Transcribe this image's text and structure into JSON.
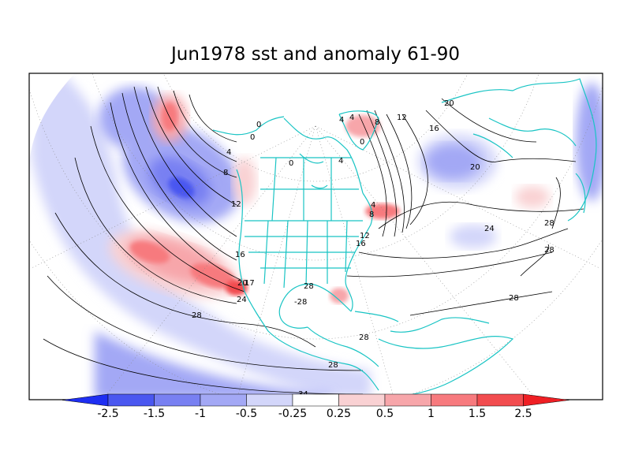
{
  "title": "Jun1978 sst and anomaly 61-90",
  "colorbar": {
    "ticks": [
      "-2.5",
      "-1.5",
      "-1",
      "-0.5",
      "-0.25",
      "0.25",
      "0.5",
      "1",
      "1.5",
      "2.5"
    ],
    "colors": [
      "#1e2ef2",
      "#4a57f0",
      "#7880f2",
      "#a3a8f5",
      "#d3d6fa",
      "#ffffff",
      "#f9d1d3",
      "#f7a6aa",
      "#f77a7e",
      "#f24c4f",
      "#ef1f24"
    ]
  },
  "contour_labels": [
    "0",
    "4",
    "0",
    "4",
    "4",
    "8",
    "12",
    "16",
    "20",
    "24",
    "28",
    "28",
    "28",
    "28",
    "28",
    "28",
    "20",
    "16",
    "12",
    "8",
    "4",
    "0",
    "0",
    "4",
    "20",
    "16",
    "12",
    "8",
    "24",
    "28",
    "34",
    "20",
    "17",
    "-28"
  ],
  "colors": {
    "coast": "#19c4c4",
    "frame": "#000000"
  }
}
